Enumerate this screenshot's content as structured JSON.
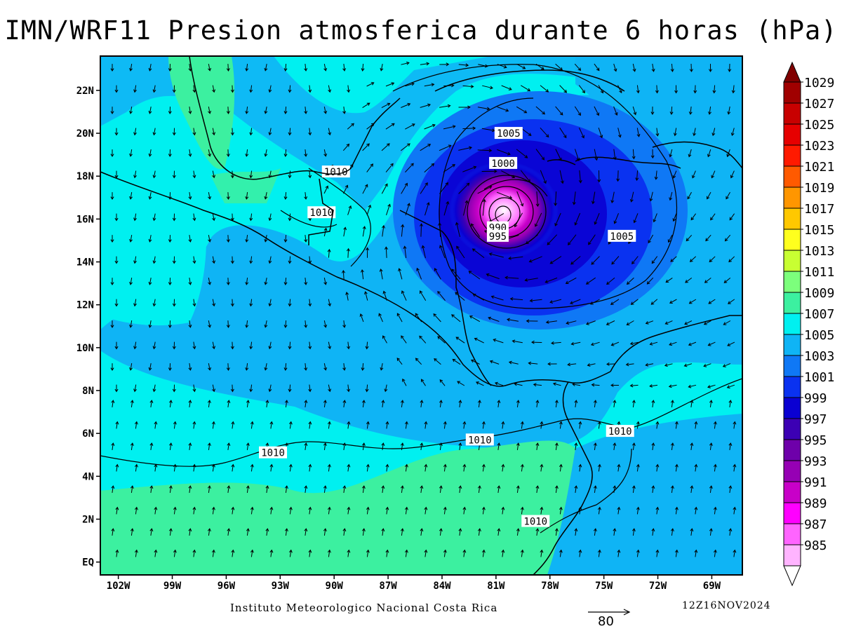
{
  "title": "IMN/WRF11 Presion atmosferica durante 6 horas (hPa)",
  "credit": "Instituto Meteorologico Nacional Costa Rica",
  "timestamp": "12Z16NOV2024",
  "vector_reference": "80",
  "x_axis_labels": [
    "102W",
    "99W",
    "96W",
    "93W",
    "90W",
    "87W",
    "84W",
    "81W",
    "78W",
    "75W",
    "72W",
    "69W"
  ],
  "y_axis_labels": [
    "22N",
    "20N",
    "18N",
    "16N",
    "14N",
    "12N",
    "10N",
    "8N",
    "6N",
    "4N",
    "2N",
    "EQ"
  ],
  "colorbar": {
    "labels": [
      "1029",
      "1027",
      "1025",
      "1023",
      "1021",
      "1019",
      "1017",
      "1015",
      "1013",
      "1011",
      "1009",
      "1007",
      "1005",
      "1003",
      "1001",
      "999",
      "997",
      "995",
      "993",
      "991",
      "989",
      "987",
      "985"
    ],
    "colors": [
      "#a00000",
      "#c80000",
      "#e60000",
      "#ff1a00",
      "#ff5a00",
      "#ff9600",
      "#ffc800",
      "#ffff1e",
      "#c8ff32",
      "#7cff7c",
      "#3cf0a0",
      "#00f0f0",
      "#0fb4f5",
      "#0f78f5",
      "#0a32f0",
      "#0a00d2",
      "#3c00b4",
      "#6e00aa",
      "#9600b4",
      "#c800c8",
      "#ff00ff",
      "#ff64ff",
      "#ffb4ff"
    ],
    "bottom_color": "#ffffff"
  },
  "contour_labels": [
    {
      "text": "1005",
      "lon": -80.3,
      "lat": 20.0
    },
    {
      "text": "1000",
      "lon": -80.6,
      "lat": 18.6
    },
    {
      "text": "1010",
      "lon": -89.9,
      "lat": 18.2
    },
    {
      "text": "1010",
      "lon": -90.7,
      "lat": 16.3
    },
    {
      "text": "1005",
      "lon": -74.0,
      "lat": 15.2
    },
    {
      "text": "990",
      "lon": -80.9,
      "lat": 15.6
    },
    {
      "text": "995",
      "lon": -80.9,
      "lat": 15.2
    },
    {
      "text": "1010",
      "lon": -93.4,
      "lat": 5.1
    },
    {
      "text": "1010",
      "lon": -81.9,
      "lat": 5.7
    },
    {
      "text": "1010",
      "lon": -74.1,
      "lat": 6.1
    },
    {
      "text": "1010",
      "lon": -78.8,
      "lat": 1.9
    }
  ]
}
